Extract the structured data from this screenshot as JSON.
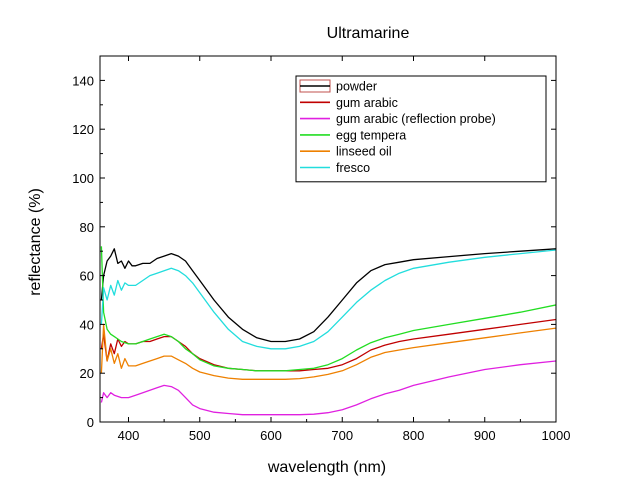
{
  "chart_data": {
    "type": "line",
    "title": "Ultramarine",
    "xlabel": "wavelength (nm)",
    "ylabel": "reflectance (%)",
    "xlim": [
      360,
      1000
    ],
    "ylim": [
      0,
      150
    ],
    "xticks": [
      400,
      500,
      600,
      700,
      800,
      900,
      1000
    ],
    "yticks": [
      0,
      20,
      40,
      60,
      80,
      100,
      120,
      140
    ],
    "grid": false,
    "legend_position": "top-right",
    "series": [
      {
        "name": "powder",
        "color": "#000000",
        "legend_swatch_outline": "#c0504d",
        "x": [
          362,
          365,
          370,
          375,
          380,
          385,
          390,
          395,
          400,
          405,
          410,
          420,
          430,
          440,
          450,
          460,
          470,
          480,
          490,
          500,
          520,
          540,
          560,
          580,
          600,
          620,
          640,
          660,
          680,
          700,
          720,
          740,
          760,
          780,
          800,
          850,
          900,
          950,
          1000
        ],
        "y": [
          50,
          60,
          66,
          68,
          71,
          65,
          66,
          63,
          66,
          64,
          64,
          65,
          65,
          67,
          68,
          69,
          68,
          66,
          62,
          58,
          50,
          43,
          38,
          34.5,
          33,
          33,
          34,
          37,
          43,
          50,
          57,
          62,
          64.5,
          65.5,
          66.5,
          67.8,
          69,
          70,
          71
        ]
      },
      {
        "name": "gum arabic",
        "color": "#c00000",
        "x": [
          362,
          365,
          370,
          375,
          380,
          385,
          390,
          395,
          400,
          410,
          420,
          430,
          440,
          450,
          460,
          470,
          480,
          490,
          500,
          520,
          540,
          560,
          580,
          600,
          620,
          640,
          660,
          680,
          700,
          720,
          740,
          760,
          780,
          800,
          850,
          900,
          950,
          1000
        ],
        "y": [
          30,
          36,
          25,
          32,
          28,
          34,
          31,
          33,
          32,
          32,
          33,
          33,
          34,
          35,
          35,
          33,
          31,
          28,
          26,
          23.5,
          22,
          21.5,
          21,
          21,
          21,
          21,
          21.5,
          22,
          23.5,
          26,
          29.5,
          31.5,
          33,
          34,
          36,
          38,
          40,
          42
        ]
      },
      {
        "name": "gum arabic (reflection probe)",
        "color": "#e020e0",
        "x": [
          362,
          365,
          370,
          375,
          380,
          390,
          400,
          410,
          420,
          430,
          440,
          450,
          460,
          470,
          480,
          490,
          500,
          520,
          540,
          560,
          580,
          600,
          620,
          640,
          660,
          680,
          700,
          720,
          740,
          760,
          780,
          800,
          850,
          900,
          950,
          1000
        ],
        "y": [
          8,
          12,
          10,
          12,
          11,
          10,
          10,
          11,
          12,
          13,
          14,
          15,
          14.5,
          13,
          10,
          7,
          5.5,
          4,
          3.5,
          3,
          3,
          3,
          3,
          3,
          3.2,
          3.8,
          5,
          7,
          9.5,
          11.5,
          13,
          15,
          18.5,
          21.5,
          23.5,
          25
        ]
      },
      {
        "name": "egg tempera",
        "color": "#22dd22",
        "x": [
          362,
          365,
          370,
          375,
          380,
          385,
          390,
          400,
          410,
          420,
          430,
          440,
          450,
          460,
          470,
          480,
          490,
          500,
          520,
          540,
          560,
          580,
          600,
          620,
          640,
          660,
          680,
          700,
          720,
          740,
          760,
          780,
          800,
          850,
          900,
          950,
          1000
        ],
        "y": [
          72,
          45,
          38,
          36,
          35,
          34,
          33,
          32,
          32,
          33,
          34,
          35,
          36,
          35,
          33,
          30,
          28,
          25.5,
          23,
          22,
          21.5,
          21,
          21,
          21,
          21.5,
          22,
          23.5,
          26,
          29.5,
          32.5,
          34.5,
          36,
          37.5,
          40,
          42.5,
          45,
          48
        ]
      },
      {
        "name": "linseed oil",
        "color": "#ee8000",
        "x": [
          362,
          365,
          370,
          375,
          380,
          385,
          390,
          395,
          400,
          410,
          420,
          430,
          440,
          450,
          460,
          470,
          480,
          490,
          500,
          520,
          540,
          560,
          580,
          600,
          620,
          640,
          660,
          680,
          700,
          720,
          740,
          760,
          780,
          800,
          850,
          900,
          950,
          1000
        ],
        "y": [
          20,
          40,
          25,
          30,
          24,
          28,
          22,
          26,
          23,
          23,
          24,
          25,
          26,
          27,
          27,
          25.5,
          24,
          22,
          20.5,
          19,
          18,
          17.5,
          17.5,
          17.5,
          17.5,
          17.8,
          18.5,
          19.5,
          21,
          23.5,
          26.5,
          28.5,
          29.5,
          30.5,
          32.5,
          34.5,
          36.5,
          38.5
        ]
      },
      {
        "name": "fresco",
        "color": "#22dddd",
        "x": [
          362,
          365,
          370,
          375,
          380,
          385,
          390,
          395,
          400,
          410,
          420,
          430,
          440,
          450,
          460,
          470,
          480,
          490,
          500,
          520,
          540,
          560,
          580,
          600,
          620,
          640,
          660,
          680,
          700,
          720,
          740,
          760,
          780,
          800,
          850,
          900,
          950,
          1000
        ],
        "y": [
          40,
          55,
          50,
          56,
          52,
          58,
          54,
          57,
          56,
          56,
          58,
          60,
          61,
          62,
          63,
          62,
          60,
          57,
          53,
          45,
          38,
          33,
          31,
          30,
          30,
          31,
          33,
          37,
          43,
          49,
          54,
          58,
          61,
          63,
          65.5,
          67.5,
          69,
          70.5
        ]
      }
    ]
  }
}
